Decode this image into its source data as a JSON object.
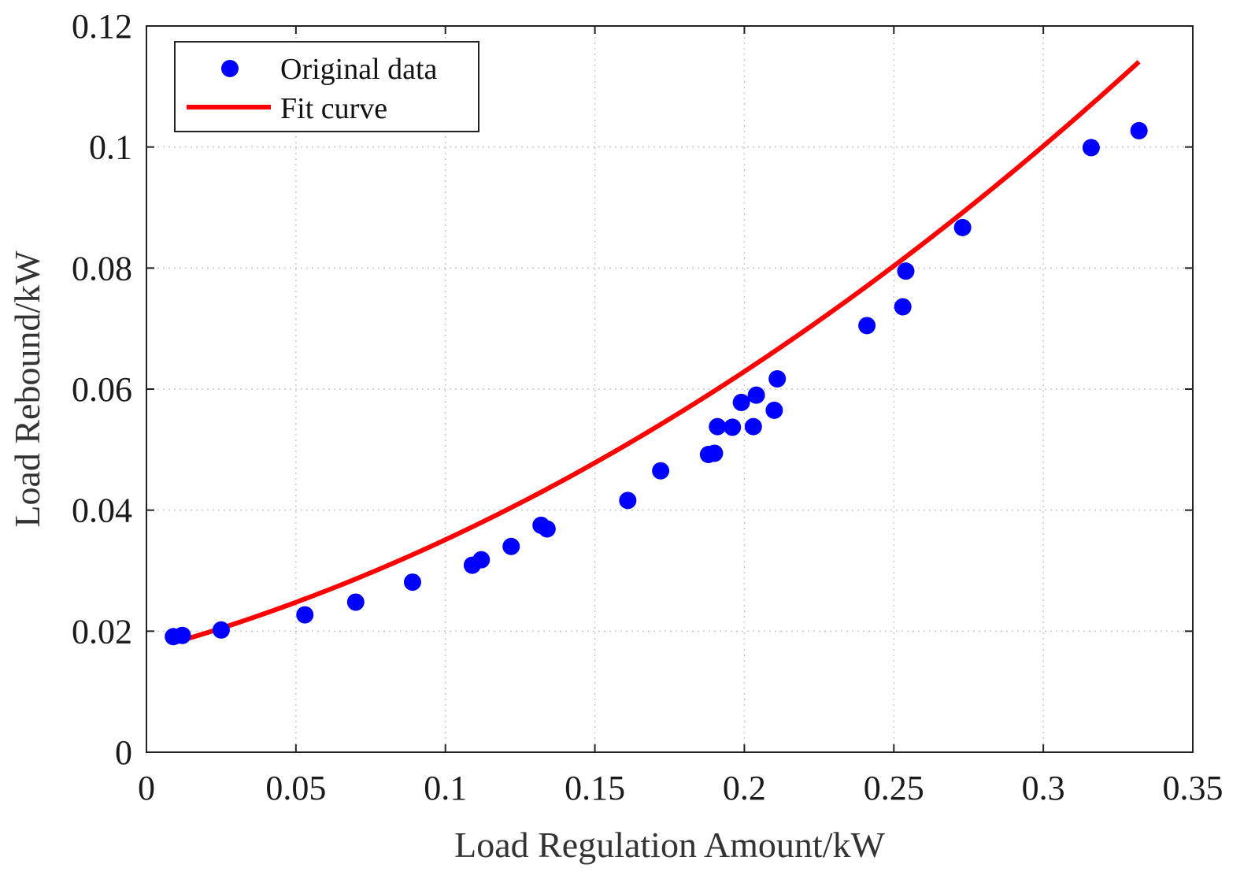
{
  "chart_data": {
    "type": "scatter",
    "title": "",
    "xlabel": "Load Regulation Amount/kW",
    "ylabel": "Load Rebound/kW",
    "xlim": [
      0,
      0.35
    ],
    "ylim": [
      0,
      0.12
    ],
    "x_ticks": [
      0,
      0.05,
      0.1,
      0.15,
      0.2,
      0.25,
      0.3,
      0.35
    ],
    "y_ticks": [
      0,
      0.02,
      0.04,
      0.06,
      0.08,
      0.1,
      0.12
    ],
    "x_tick_labels": [
      "0",
      "0.05",
      "0.1",
      "0.15",
      "0.2",
      "0.25",
      "0.3",
      "0.35"
    ],
    "y_tick_labels": [
      "0",
      "0.02",
      "0.04",
      "0.06",
      "0.08",
      "0.1",
      "0.12"
    ],
    "grid": true,
    "legend": {
      "position": "top-left",
      "entries": [
        {
          "label": "Original data",
          "marker": "circle",
          "color": "#0000ff"
        },
        {
          "label": "Fit curve",
          "marker": "line",
          "color": "#ff0000"
        }
      ]
    },
    "series": [
      {
        "name": "Original data",
        "kind": "scatter",
        "color": "#0000ff",
        "points": [
          {
            "x": 0.009,
            "y": 0.0191
          },
          {
            "x": 0.012,
            "y": 0.0193
          },
          {
            "x": 0.025,
            "y": 0.0202
          },
          {
            "x": 0.053,
            "y": 0.0227
          },
          {
            "x": 0.07,
            "y": 0.0248
          },
          {
            "x": 0.089,
            "y": 0.0281
          },
          {
            "x": 0.109,
            "y": 0.0309
          },
          {
            "x": 0.112,
            "y": 0.0318
          },
          {
            "x": 0.122,
            "y": 0.034
          },
          {
            "x": 0.132,
            "y": 0.0375
          },
          {
            "x": 0.134,
            "y": 0.0369
          },
          {
            "x": 0.161,
            "y": 0.0416
          },
          {
            "x": 0.172,
            "y": 0.0465
          },
          {
            "x": 0.188,
            "y": 0.0492
          },
          {
            "x": 0.19,
            "y": 0.0494
          },
          {
            "x": 0.191,
            "y": 0.0538
          },
          {
            "x": 0.196,
            "y": 0.0537
          },
          {
            "x": 0.199,
            "y": 0.0578
          },
          {
            "x": 0.203,
            "y": 0.0538
          },
          {
            "x": 0.204,
            "y": 0.059
          },
          {
            "x": 0.21,
            "y": 0.0565
          },
          {
            "x": 0.211,
            "y": 0.0617
          },
          {
            "x": 0.241,
            "y": 0.0705
          },
          {
            "x": 0.253,
            "y": 0.0736
          },
          {
            "x": 0.254,
            "y": 0.0795
          },
          {
            "x": 0.273,
            "y": 0.0867
          },
          {
            "x": 0.316,
            "y": 0.0999
          },
          {
            "x": 0.332,
            "y": 0.1027
          }
        ]
      },
      {
        "name": "Fit curve",
        "kind": "line",
        "color": "#ff0000",
        "x_range": [
          0.01,
          0.332
        ],
        "quadratic_coefficients": {
          "a": 0.4736,
          "b": 0.1358,
          "c": 0.0168
        }
      }
    ]
  }
}
